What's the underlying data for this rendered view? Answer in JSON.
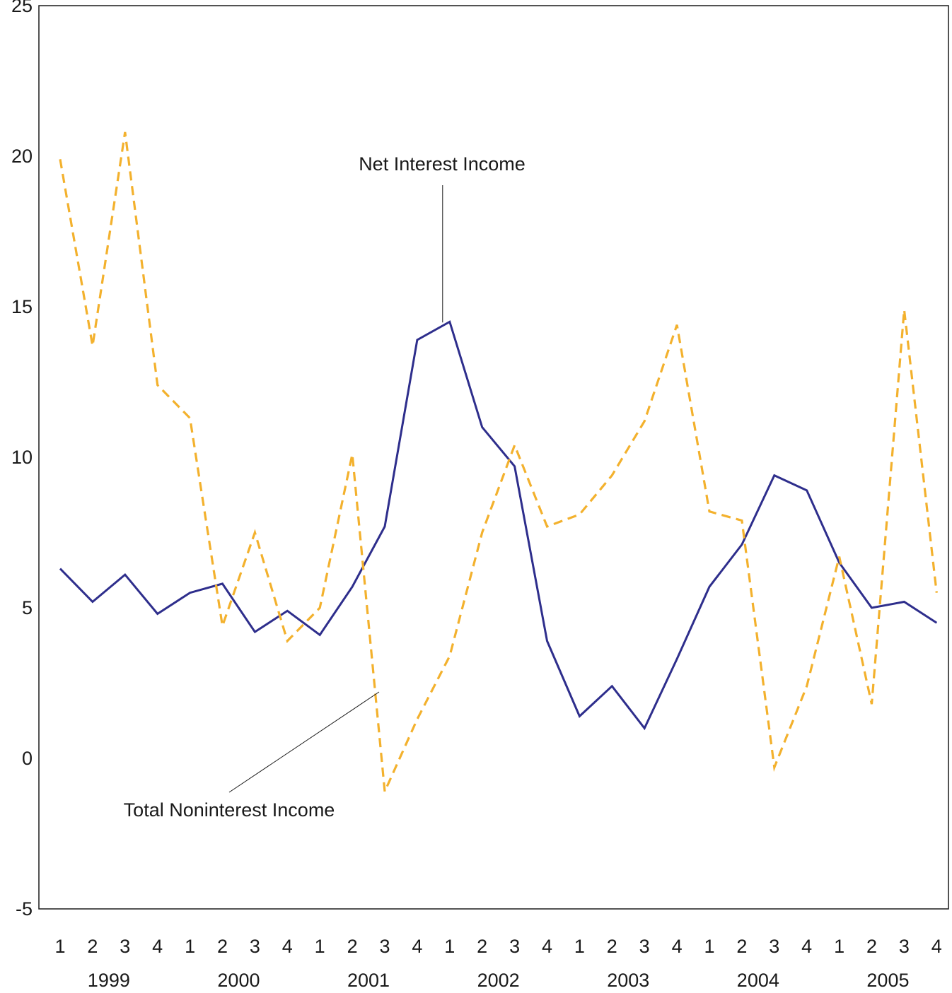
{
  "chart_data": {
    "type": "line",
    "title": "",
    "xlabel": "",
    "ylabel": "",
    "ylim": [
      -5,
      25
    ],
    "yticks": [
      -5,
      0,
      5,
      10,
      15,
      20,
      25
    ],
    "grid": false,
    "legend": "none",
    "quarters": [
      "1",
      "2",
      "3",
      "4",
      "1",
      "2",
      "3",
      "4",
      "1",
      "2",
      "3",
      "4",
      "1",
      "2",
      "3",
      "4",
      "1",
      "2",
      "3",
      "4",
      "1",
      "2",
      "3",
      "4",
      "1",
      "2",
      "3",
      "4"
    ],
    "years": [
      "1999",
      "2000",
      "2001",
      "2002",
      "2003",
      "2004",
      "2005"
    ],
    "series": [
      {
        "name": "Net Interest Income",
        "color": "#2e2e8c",
        "style": "solid",
        "values": [
          6.3,
          5.2,
          6.1,
          4.8,
          5.5,
          5.8,
          4.2,
          4.9,
          4.1,
          5.7,
          7.7,
          13.9,
          14.5,
          11.0,
          9.7,
          3.9,
          1.4,
          2.4,
          1.0,
          3.3,
          5.7,
          7.1,
          9.4,
          8.9,
          6.5,
          5.0,
          5.2,
          4.5
        ]
      },
      {
        "name": "Total Noninterest Income",
        "color": "#f3b12d",
        "style": "dashed",
        "values": [
          19.9,
          13.7,
          20.8,
          12.4,
          11.3,
          4.4,
          7.5,
          3.9,
          5.0,
          10.1,
          -1.1,
          1.3,
          3.4,
          7.5,
          10.4,
          7.7,
          8.1,
          9.4,
          11.2,
          14.4,
          8.2,
          7.9,
          -0.3,
          2.4,
          6.7,
          1.8,
          14.9,
          5.5
        ]
      }
    ],
    "annotations": [
      {
        "text": "Net Interest Income",
        "series": "Net Interest Income",
        "anchor_index": 12,
        "anchor_y": 14.5
      },
      {
        "text": "Total Noninterest Income",
        "series": "Total Noninterest Income",
        "anchor_index": 10,
        "anchor_y": 2.3
      }
    ]
  }
}
